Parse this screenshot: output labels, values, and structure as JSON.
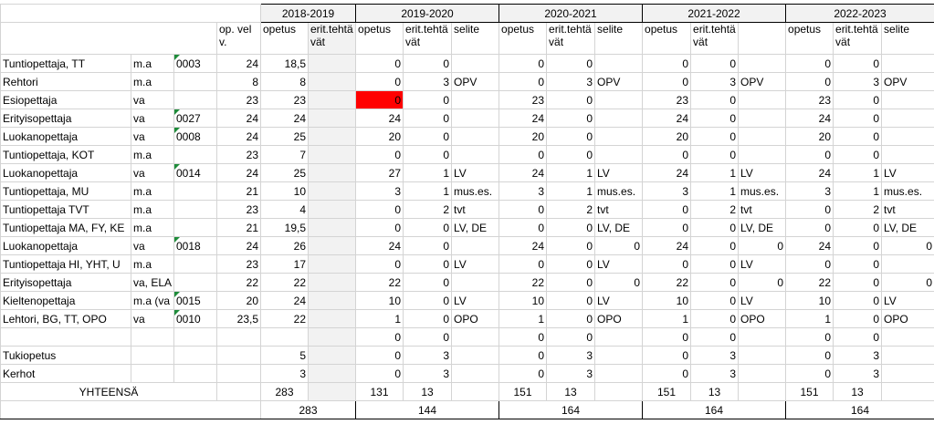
{
  "years": [
    "2018-2019",
    "2019-2020",
    "2020-2021",
    "2021-2022",
    "2022-2023"
  ],
  "sub_headers": [
    "op. velv.",
    "opetus",
    "erit.tehtävät",
    "opetus",
    "erit.tehtävät",
    "selite",
    "opetus",
    "erit.tehtävät",
    "selite",
    "opetus",
    "erit.tehtävät",
    null,
    "opetus",
    "erit.tehtävät",
    "selite"
  ],
  "rows": [
    [
      "Tuntiopettaja, TT",
      "m.a",
      "0003",
      "24",
      "18,5",
      null,
      "0",
      "0",
      null,
      "0",
      "0",
      null,
      "0",
      "0",
      null,
      "0",
      "0",
      null
    ],
    [
      "Rehtori",
      "m.a",
      null,
      "8",
      "8",
      null,
      "0",
      "3",
      "OPV",
      "0",
      "3",
      "OPV",
      "0",
      "3",
      "OPV",
      "0",
      "3",
      "OPV"
    ],
    [
      "Esiopettaja",
      "va",
      null,
      "23",
      "23",
      null,
      "0",
      "0",
      null,
      "23",
      "0",
      null,
      "23",
      "0",
      null,
      "23",
      "0",
      null
    ],
    [
      "Erityisopettaja",
      "va",
      "0027",
      "24",
      "24",
      null,
      "24",
      "0",
      null,
      "24",
      "0",
      null,
      "24",
      "0",
      null,
      "24",
      "0",
      null
    ],
    [
      "Luokanopettaja",
      "va",
      "0008",
      "24",
      "25",
      null,
      "20",
      "0",
      null,
      "20",
      "0",
      null,
      "20",
      "0",
      null,
      "20",
      "0",
      null
    ],
    [
      "Tuntiopettaja, KOT",
      "m.a",
      null,
      "23",
      "7",
      null,
      "0",
      "0",
      null,
      "0",
      "0",
      null,
      "0",
      "0",
      null,
      "0",
      "0",
      null
    ],
    [
      "Luokanopettaja",
      "va",
      "0014",
      "24",
      "25",
      null,
      "27",
      "1",
      "LV",
      "24",
      "1",
      "LV",
      "24",
      "1",
      "LV",
      "24",
      "1",
      "LV"
    ],
    [
      "Tuntiopettaja, MU",
      "m.a",
      null,
      "21",
      "10",
      null,
      "3",
      "1",
      "mus.es.",
      "3",
      "1",
      "mus.es.",
      "3",
      "1",
      "mus.es.",
      "3",
      "1",
      "mus.es."
    ],
    [
      "Tuntiopettaja TVT",
      "m.a",
      null,
      "23",
      "4",
      null,
      "0",
      "2",
      "tvt",
      "0",
      "2",
      "tvt",
      "0",
      "2",
      "tvt",
      "0",
      "2",
      "tvt"
    ],
    [
      "Tuntiopettaja MA, FY, KE",
      "m.a",
      null,
      "21",
      "19,5",
      null,
      "0",
      "0",
      "LV, DE",
      "0",
      "0",
      "LV, DE",
      "0",
      "0",
      "LV, DE",
      "0",
      "0",
      "LV, DE"
    ],
    [
      "Luokanopettaja",
      "va",
      "0018",
      "24",
      "26",
      null,
      "24",
      "0",
      null,
      "24",
      "0",
      "0",
      "24",
      "0",
      "0",
      "24",
      "0",
      "0"
    ],
    [
      "Tuntiopettaja HI, YHT, U",
      "m.a",
      null,
      "23",
      "17",
      null,
      "0",
      "0",
      "LV",
      "0",
      "0",
      "LV",
      "0",
      "0",
      "LV",
      "0",
      "0",
      null
    ],
    [
      "Erityisopettaja",
      "va, ELA",
      null,
      "22",
      "22",
      null,
      "22",
      "0",
      null,
      "22",
      "0",
      "0",
      "22",
      "0",
      "0",
      "22",
      "0",
      "0"
    ],
    [
      "Kieltenopettaja",
      "m.a (va",
      "0015",
      "20",
      "24",
      null,
      "10",
      "0",
      "LV",
      "10",
      "0",
      "LV",
      "10",
      "0",
      "LV",
      "10",
      "0",
      "LV"
    ],
    [
      "Lehtori, BG, TT, OPO",
      "va",
      "0010",
      "23,5",
      "22",
      null,
      "1",
      "0",
      "OPO",
      "1",
      "0",
      "OPO",
      "1",
      "0",
      "OPO",
      "1",
      "0",
      "OPO"
    ],
    [
      null,
      null,
      null,
      null,
      null,
      null,
      "0",
      "0",
      null,
      "0",
      "0",
      null,
      "0",
      "0",
      null,
      "0",
      "0",
      null
    ],
    [
      "Tukiopetus",
      null,
      null,
      null,
      "5",
      null,
      "0",
      "3",
      null,
      "0",
      "3",
      null,
      "0",
      "3",
      null,
      "0",
      "3",
      null
    ],
    [
      "Kerhot",
      null,
      null,
      null,
      "3",
      null,
      "0",
      "3",
      null,
      "0",
      "3",
      null,
      "0",
      "3",
      null,
      "0",
      "3",
      null
    ]
  ],
  "totals": {
    "label": "YHTEENSÄ",
    "values": [
      null,
      "283",
      null,
      "131",
      "13",
      null,
      "151",
      "13",
      null,
      "151",
      "13",
      null,
      "151",
      "13",
      null
    ]
  },
  "grand_totals": [
    "283",
    "144",
    "164",
    "164",
    "164"
  ]
}
